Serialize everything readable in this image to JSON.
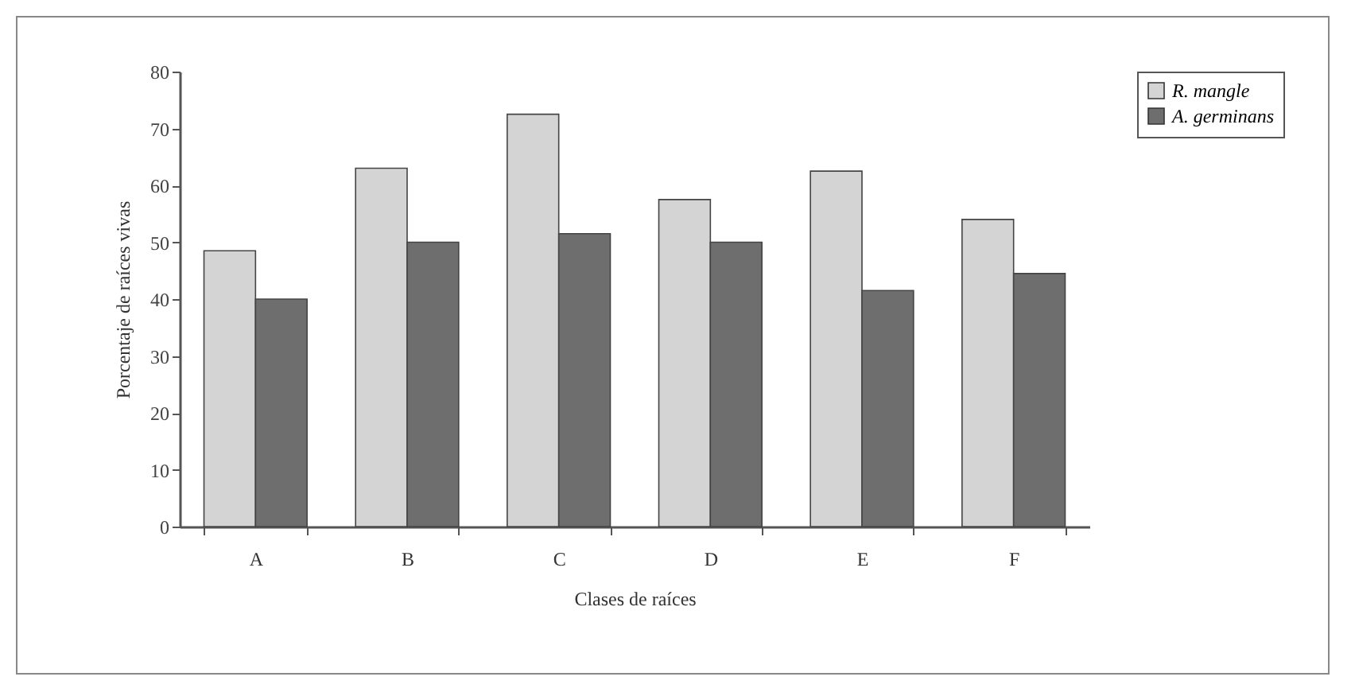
{
  "chart_data": {
    "type": "bar",
    "xlabel": "Clases de raíces",
    "ylabel": "Porcentaje de raíces vivas",
    "categories": [
      "A",
      "B",
      "C",
      "D",
      "E",
      "F"
    ],
    "series": [
      {
        "name": "R. mangle",
        "color": "#d4d4d4",
        "values": [
          48.5,
          63,
          72.5,
          57.5,
          62.5,
          54
        ]
      },
      {
        "name": "A. germinans",
        "color": "#6e6e6e",
        "values": [
          40,
          50,
          51.5,
          50,
          41.5,
          44.5
        ]
      }
    ],
    "ylim": [
      0,
      80
    ],
    "yticks": [
      0,
      10,
      20,
      30,
      40,
      50,
      60,
      70,
      80
    ],
    "grid": false,
    "legend": "right"
  }
}
